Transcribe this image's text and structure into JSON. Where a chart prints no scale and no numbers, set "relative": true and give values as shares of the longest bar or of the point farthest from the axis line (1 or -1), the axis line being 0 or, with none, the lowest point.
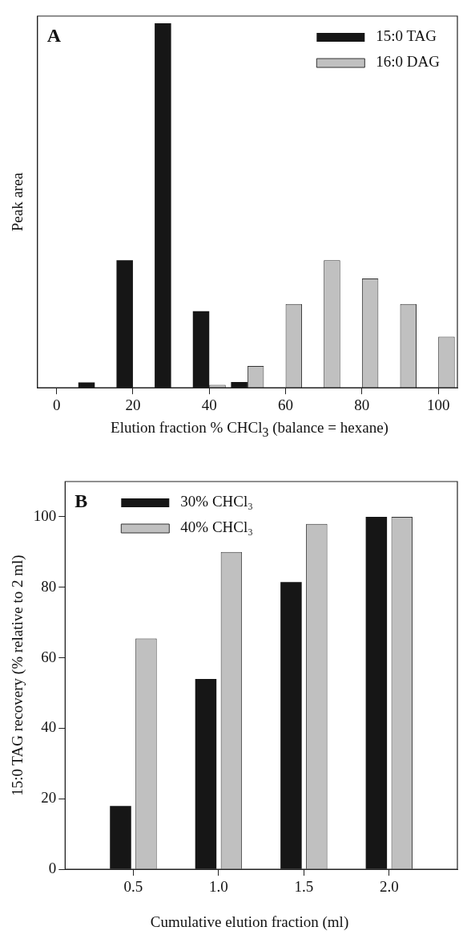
{
  "chart_data": [
    {
      "type": "bar",
      "relative": true,
      "ylabel": "Peak area",
      "xlabel": "Elution fraction % CHCl$_{3}$ (balance = hexane)",
      "annotations": [
        "A"
      ],
      "categories": [
        "0",
        null,
        "20",
        null,
        "40",
        null,
        "60",
        null,
        "80",
        null,
        "100"
      ],
      "series": [
        {
          "name": "15:0 TAG",
          "color": "#161616",
          "values": [
            0,
            0.015,
            0.35,
            1,
            0.21,
            0.016,
            0,
            0,
            0,
            0,
            0
          ]
        },
        {
          "name": "16:0 DAG",
          "color": "#c0c0c0",
          "values": [
            0,
            0,
            0,
            0,
            0.008,
            0.06,
            0.23,
            0.35,
            0.3,
            0.23,
            0.14
          ]
        }
      ],
      "legend": "top right",
      "grid": false
    },
    {
      "type": "bar",
      "ylabel": "15:0 TAG recovery (% relative to 2 ml)",
      "xlabel": "Cumulative elution fraction (ml)",
      "annotations": [
        "B"
      ],
      "x": [
        0.5,
        1,
        1.5,
        2
      ],
      "xlim": [
        0.1,
        2.4
      ],
      "xticks": [
        {
          "value": 0.5,
          "label": "0.5"
        },
        {
          "value": 1,
          "label": "1.0"
        },
        {
          "value": 1.5,
          "label": "1.5"
        },
        {
          "value": 2,
          "label": "2.0"
        }
      ],
      "ylim": [
        0,
        110
      ],
      "yticks": [
        0,
        20,
        40,
        60,
        80,
        100
      ],
      "series": [
        {
          "name": "30% CHCl₃",
          "color": "#161616",
          "values": [
            18,
            54,
            81.5,
            100
          ]
        },
        {
          "name": "40% CHCl₃",
          "color": "#c0c0c0",
          "values": [
            65.5,
            90,
            98,
            100
          ]
        }
      ],
      "legend": "top left",
      "grid": false
    }
  ]
}
